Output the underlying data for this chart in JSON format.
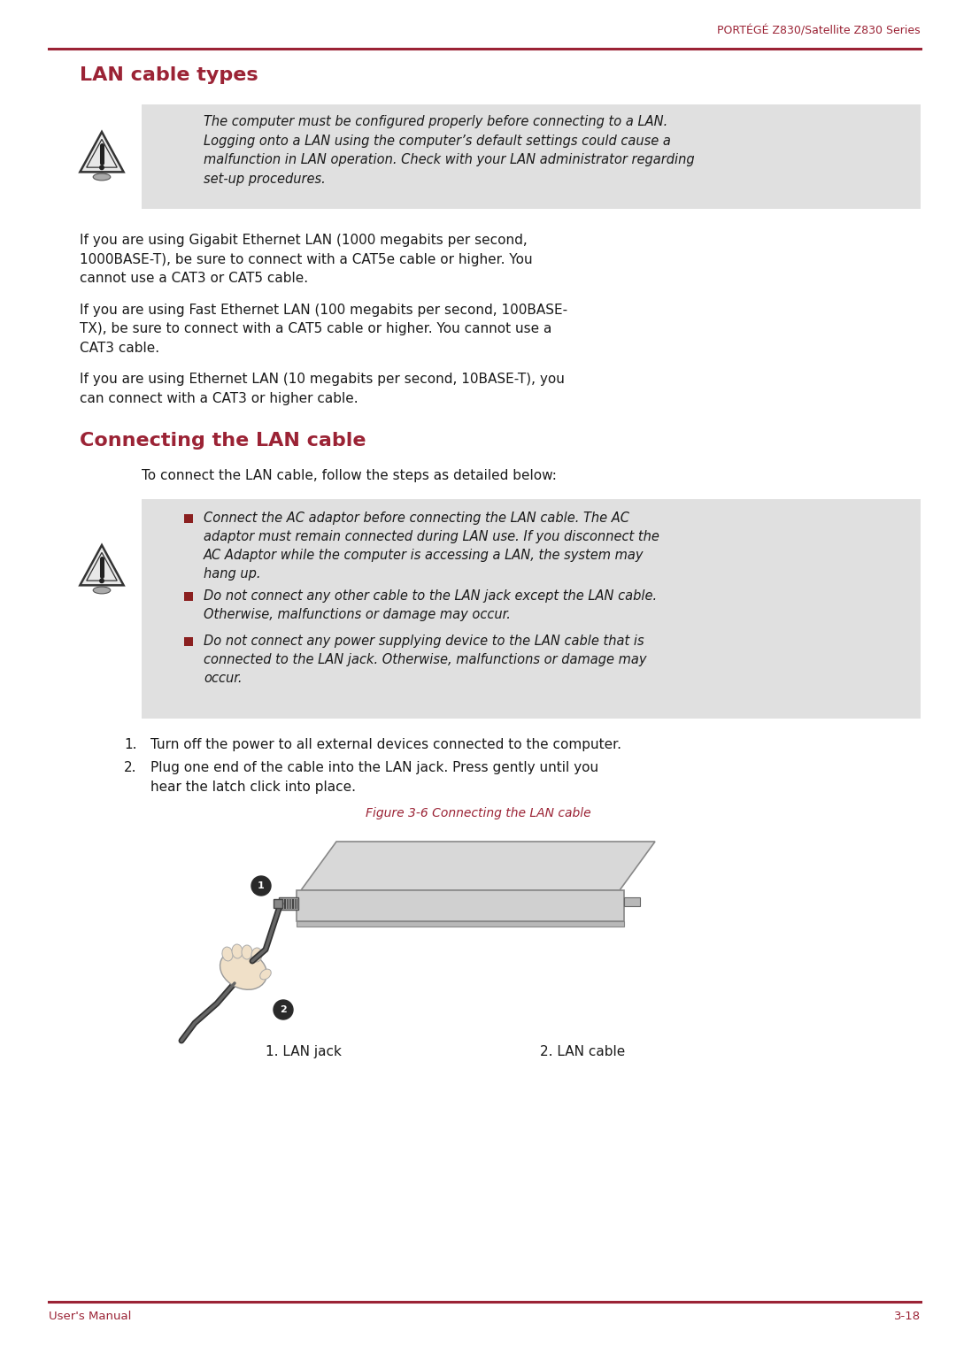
{
  "page_header": "PORTÉGÉ Z830/Satellite Z830 Series",
  "section1_title": "LAN cable types",
  "section2_title": "Connecting the LAN cable",
  "warning_bg": "#E0E0E0",
  "warning_text1": "The computer must be configured properly before connecting to a LAN.\nLogging onto a LAN using the computer’s default settings could cause a\nmalfunction in LAN operation. Check with your LAN administrator regarding\nset-up procedures.",
  "body_text1": "If you are using Gigabit Ethernet LAN (1000 megabits per second,\n1000BASE-T), be sure to connect with a CAT5e cable or higher. You\ncannot use a CAT3 or CAT5 cable.",
  "body_text2": "If you are using Fast Ethernet LAN (100 megabits per second, 100BASE-\nTX), be sure to connect with a CAT5 cable or higher. You cannot use a\nCAT3 cable.",
  "body_text3": "If you are using Ethernet LAN (10 megabits per second, 10BASE-T), you\ncan connect with a CAT3 or higher cable.",
  "connect_intro": "To connect the LAN cable, follow the steps as detailed below:",
  "warning_text2_items": [
    "Connect the AC adaptor before connecting the LAN cable. The AC\nadaptor must remain connected during LAN use. If you disconnect the\nAC Adaptor while the computer is accessing a LAN, the system may\nhang up.",
    "Do not connect any other cable to the LAN jack except the LAN cable.\nOtherwise, malfunctions or damage may occur.",
    "Do not connect any power supplying device to the LAN cable that is\nconnected to the LAN jack. Otherwise, malfunctions or damage may\noccur."
  ],
  "step1": "Turn off the power to all external devices connected to the computer.",
  "step2": "Plug one end of the cable into the LAN jack. Press gently until you\nhear the latch click into place.",
  "figure_caption": "Figure 3-6 Connecting the LAN cable",
  "label1": "1. LAN jack",
  "label2": "2. LAN cable",
  "footer_left": "User's Manual",
  "footer_right": "3-18",
  "bg_color": "#FFFFFF",
  "text_color": "#1A1A1A",
  "red_color": "#9B2335",
  "bullet_color": "#8B2020"
}
